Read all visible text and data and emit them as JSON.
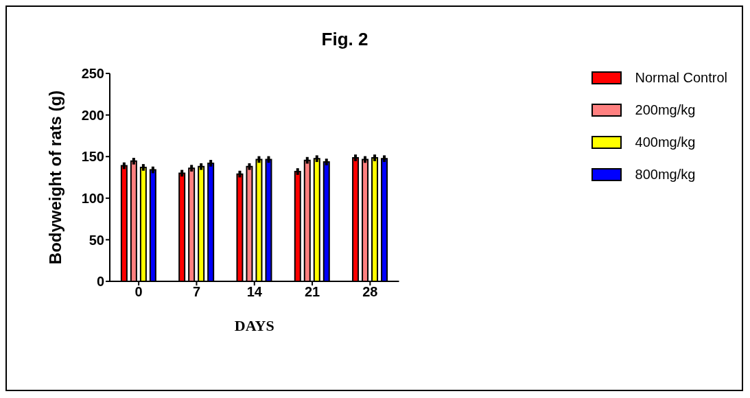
{
  "chart_data": {
    "type": "bar",
    "title": "Fig. 2",
    "xlabel": "DAYS",
    "ylabel": "Bodyweight of rats (g)",
    "categories": [
      "0",
      "7",
      "14",
      "21",
      "28"
    ],
    "series": [
      {
        "name": "Normal Control",
        "color": "#ff0000",
        "values": [
          139,
          130,
          129,
          132,
          148.5
        ],
        "errors": [
          4,
          4,
          4,
          4,
          4
        ]
      },
      {
        "name": "200mg/kg",
        "color": "#ff8080",
        "values": [
          144.5,
          136,
          138,
          145.5,
          146.5
        ],
        "errors": [
          4,
          4,
          4,
          4,
          4
        ]
      },
      {
        "name": "400mg/kg",
        "color": "#ffff00",
        "values": [
          137,
          138,
          146.5,
          147.5,
          148.5
        ],
        "errors": [
          4,
          4,
          4,
          4,
          4
        ]
      },
      {
        "name": "800mg/kg",
        "color": "#0000ff",
        "values": [
          134,
          142,
          146.5,
          143.5,
          147.5
        ],
        "errors": [
          4,
          4,
          4,
          4,
          4
        ]
      }
    ],
    "ylim": [
      0,
      250
    ],
    "yticks": [
      0,
      50,
      100,
      150,
      200,
      250
    ],
    "grid": false,
    "legend": "top right"
  }
}
